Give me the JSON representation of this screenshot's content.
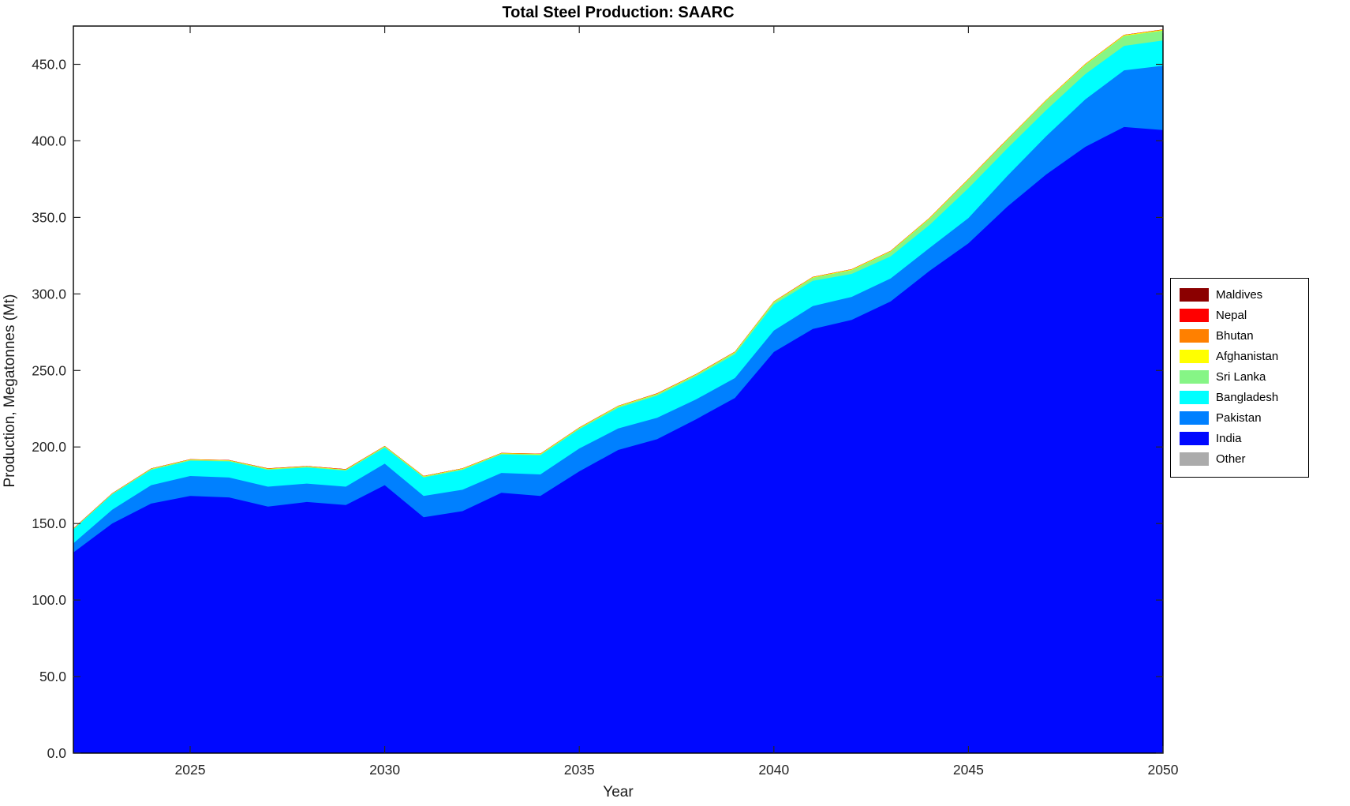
{
  "title": "Total Steel Production: SAARC",
  "xlabel": "Year",
  "ylabel": "Production, Megatonnes (Mt)",
  "axis_color": "#262626",
  "spine_color": "#000000",
  "background_color": "#ffffff",
  "chart_data": {
    "type": "area",
    "stacked": true,
    "title": "Total Steel Production: SAARC",
    "xlabel": "Year",
    "ylabel": "Production, Megatonnes (Mt)",
    "grid": false,
    "legend_position": "right-outside",
    "xlim": [
      2022,
      2050
    ],
    "ylim": [
      0,
      475
    ],
    "xticks": [
      2025,
      2030,
      2035,
      2040,
      2045,
      2050
    ],
    "xticklabels": [
      "2025",
      "2030",
      "2035",
      "2040",
      "2045",
      "2050"
    ],
    "yticks": [
      0,
      50,
      100,
      150,
      200,
      250,
      300,
      350,
      400,
      450
    ],
    "yticklabels": [
      "0.0",
      "50.0",
      "100.0",
      "150.0",
      "200.0",
      "250.0",
      "300.0",
      "350.0",
      "400.0",
      "450.0"
    ],
    "x": [
      2022,
      2023,
      2024,
      2025,
      2026,
      2027,
      2028,
      2029,
      2030,
      2031,
      2032,
      2033,
      2034,
      2035,
      2036,
      2037,
      2038,
      2039,
      2040,
      2041,
      2042,
      2043,
      2044,
      2045,
      2046,
      2047,
      2048,
      2049,
      2050
    ],
    "series_note": "series listed bottom-to-top of stack; values in Megatonnes",
    "series": [
      {
        "name": "Other",
        "color": "#ABABAB",
        "values": [
          0.05,
          0.05,
          0.05,
          0.05,
          0.05,
          0.05,
          0.05,
          0.05,
          0.05,
          0.05,
          0.05,
          0.05,
          0.05,
          0.05,
          0.05,
          0.05,
          0.05,
          0.05,
          0.05,
          0.05,
          0.05,
          0.05,
          0.05,
          0.05,
          0.05,
          0.05,
          0.05,
          0.05,
          0.05
        ]
      },
      {
        "name": "India",
        "color": "#0008FF",
        "values": [
          131,
          150,
          163,
          168,
          167,
          161,
          164,
          162,
          175,
          154,
          158,
          170,
          168,
          184,
          198,
          205,
          218,
          232,
          262,
          277,
          283,
          295,
          315,
          333,
          357,
          378,
          396,
          409,
          407
        ]
      },
      {
        "name": "Pakistan",
        "color": "#0080FF",
        "values": [
          6,
          9,
          12,
          13,
          13,
          13,
          12,
          12,
          14,
          14,
          14,
          13,
          14,
          15,
          14,
          14,
          13,
          13,
          14,
          15,
          15,
          15,
          15,
          16.5,
          20,
          25,
          31,
          37,
          42
        ]
      },
      {
        "name": "Bangladesh",
        "color": "#00FFFF",
        "values": [
          9,
          10,
          10,
          10,
          10.5,
          11,
          10.5,
          10.5,
          10.5,
          12,
          13,
          12,
          12.5,
          12.5,
          13.5,
          14.5,
          15,
          15.5,
          17,
          16.5,
          15,
          14.5,
          15,
          19.5,
          18,
          17,
          16.5,
          16,
          16.5
        ]
      },
      {
        "name": "Sri Lanka",
        "color": "#86F586",
        "values": [
          0.4,
          0.4,
          0.5,
          0.5,
          0.5,
          0.5,
          0.5,
          0.5,
          0.6,
          0.5,
          0.5,
          0.6,
          0.6,
          0.7,
          0.8,
          0.9,
          1,
          1.2,
          1.5,
          2,
          2.5,
          3,
          4,
          5.5,
          5.5,
          6,
          6,
          6.5,
          6.5
        ]
      },
      {
        "name": "Afghanistan",
        "color": "#FFFF00",
        "values": [
          0.2,
          0.2,
          0.2,
          0.25,
          0.25,
          0.25,
          0.25,
          0.25,
          0.3,
          0.3,
          0.3,
          0.3,
          0.3,
          0.3,
          0.35,
          0.35,
          0.35,
          0.35,
          0.4,
          0.4,
          0.4,
          0.4,
          0.45,
          0.45,
          0.45,
          0.5,
          0.5,
          0.5,
          0.5
        ]
      },
      {
        "name": "Bhutan",
        "color": "#FF8000",
        "values": [
          0.05,
          0.05,
          0.05,
          0.05,
          0.05,
          0.05,
          0.05,
          0.05,
          0.05,
          0.05,
          0.05,
          0.05,
          0.05,
          0.05,
          0.05,
          0.05,
          0.05,
          0.05,
          0.05,
          0.05,
          0.05,
          0.05,
          0.05,
          0.05,
          0.05,
          0.05,
          0.05,
          0.05,
          0.05
        ]
      },
      {
        "name": "Nepal",
        "color": "#FF0000",
        "values": [
          0.15,
          0.15,
          0.15,
          0.15,
          0.15,
          0.15,
          0.15,
          0.15,
          0.15,
          0.15,
          0.15,
          0.15,
          0.15,
          0.15,
          0.15,
          0.15,
          0.15,
          0.15,
          0.15,
          0.15,
          0.15,
          0.15,
          0.15,
          0.15,
          0.15,
          0.15,
          0.15,
          0.15,
          0.15
        ]
      },
      {
        "name": "Maldives",
        "color": "#8B0000",
        "values": [
          0.01,
          0.01,
          0.01,
          0.01,
          0.01,
          0.01,
          0.01,
          0.01,
          0.01,
          0.01,
          0.01,
          0.01,
          0.01,
          0.01,
          0.01,
          0.01,
          0.01,
          0.01,
          0.01,
          0.01,
          0.01,
          0.01,
          0.01,
          0.01,
          0.01,
          0.01,
          0.01,
          0.01,
          0.01
        ]
      }
    ],
    "legend_entries": [
      {
        "label": "Maldives",
        "color": "#8B0000"
      },
      {
        "label": "Nepal",
        "color": "#FF0000"
      },
      {
        "label": "Bhutan",
        "color": "#FF8000"
      },
      {
        "label": "Afghanistan",
        "color": "#FFFF00"
      },
      {
        "label": "Sri Lanka",
        "color": "#86F586"
      },
      {
        "label": "Bangladesh",
        "color": "#00FFFF"
      },
      {
        "label": "Pakistan",
        "color": "#0080FF"
      },
      {
        "label": "India",
        "color": "#0008FF"
      },
      {
        "label": "Other",
        "color": "#ABABAB"
      }
    ]
  }
}
